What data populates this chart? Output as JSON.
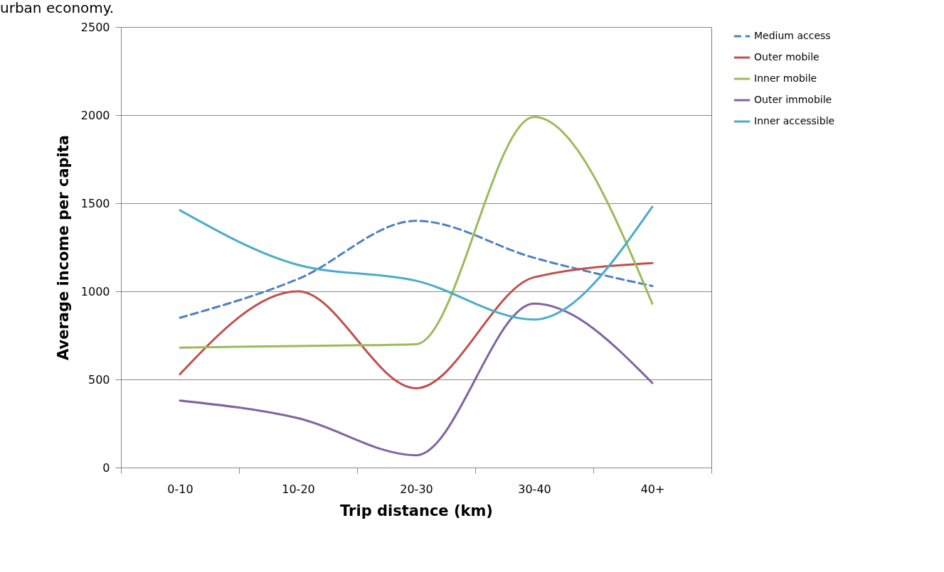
{
  "chart_data": {
    "type": "line",
    "annotations": [
      "urban economy."
    ],
    "xlabel": "Trip distance (km)",
    "ylabel": "Average income per capita",
    "categories": [
      "0-10",
      "10-20",
      "20-30",
      "30-40",
      "40+"
    ],
    "series": [
      {
        "name": "Medium access",
        "color": "#4f81bd",
        "line_style": "dashed",
        "values": [
          850,
          1070,
          1400,
          1190,
          1030
        ]
      },
      {
        "name": "Outer mobile",
        "color": "#c0504d",
        "values": [
          530,
          1000,
          450,
          1080,
          1160
        ]
      },
      {
        "name": "Inner mobile",
        "color": "#9bbb59",
        "values": [
          680,
          690,
          700,
          1990,
          930
        ]
      },
      {
        "name": "Outer immobile",
        "color": "#8064a2",
        "values": [
          380,
          280,
          70,
          930,
          480
        ]
      },
      {
        "name": "Inner accessible",
        "color": "#4bacc6",
        "values": [
          1460,
          1150,
          1060,
          840,
          1480
        ]
      }
    ],
    "ylim": [
      0,
      2500
    ],
    "yticks": [
      0,
      500,
      1000,
      1500,
      2000,
      2500
    ],
    "grid": "y",
    "legend": "right",
    "marker": "none"
  }
}
